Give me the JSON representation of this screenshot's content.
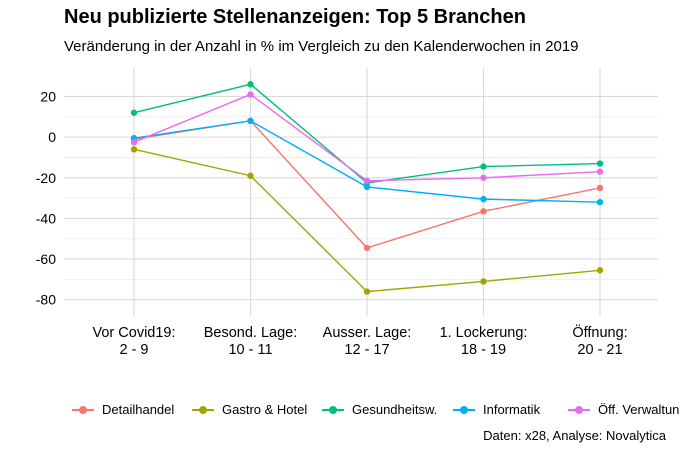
{
  "chart_data": {
    "type": "line",
    "title": "Neu publizierte Stellenanzeigen: Top 5 Branchen",
    "subtitle": "Veränderung in der Anzahl in % im Vergleich zu den Kalenderwochen in 2019",
    "caption": "Daten: x28, Analyse: Novalytica",
    "xlabel": "",
    "ylabel": "",
    "categories": [
      [
        "Vor Covid19:",
        "2 - 9"
      ],
      [
        "Besond. Lage:",
        "10 - 11"
      ],
      [
        "Ausser. Lage:",
        "12 - 17"
      ],
      [
        "1. Lockerung:",
        "18 - 19"
      ],
      [
        "Öffnung:",
        "20 - 21"
      ]
    ],
    "ylim": [
      -88,
      34
    ],
    "yticks": [
      20,
      0,
      -20,
      -40,
      -60,
      -80
    ],
    "ytick_labels": [
      "20",
      "0",
      "-20",
      "-40",
      "-60",
      "-80"
    ],
    "grid": true,
    "legend_position": "bottom",
    "series": [
      {
        "name": "Detailhandel",
        "color": "#F8766D",
        "values": [
          -1,
          8,
          -54.5,
          -36.5,
          -25
        ]
      },
      {
        "name": "Gastro & Hotel",
        "color": "#A3A500",
        "values": [
          -6,
          -19,
          -76,
          -71,
          -65.5
        ]
      },
      {
        "name": "Gesundheitsw.",
        "color": "#00BF7D",
        "values": [
          12,
          26,
          -22.5,
          -14.5,
          -13
        ]
      },
      {
        "name": "Informatik",
        "color": "#00B0F6",
        "values": [
          -0.5,
          8,
          -24.5,
          -30.5,
          -32
        ]
      },
      {
        "name": "Öff. Verwaltung",
        "color": "#E76BF3",
        "values": [
          -2.5,
          21,
          -21.5,
          -20,
          -17
        ]
      }
    ]
  }
}
